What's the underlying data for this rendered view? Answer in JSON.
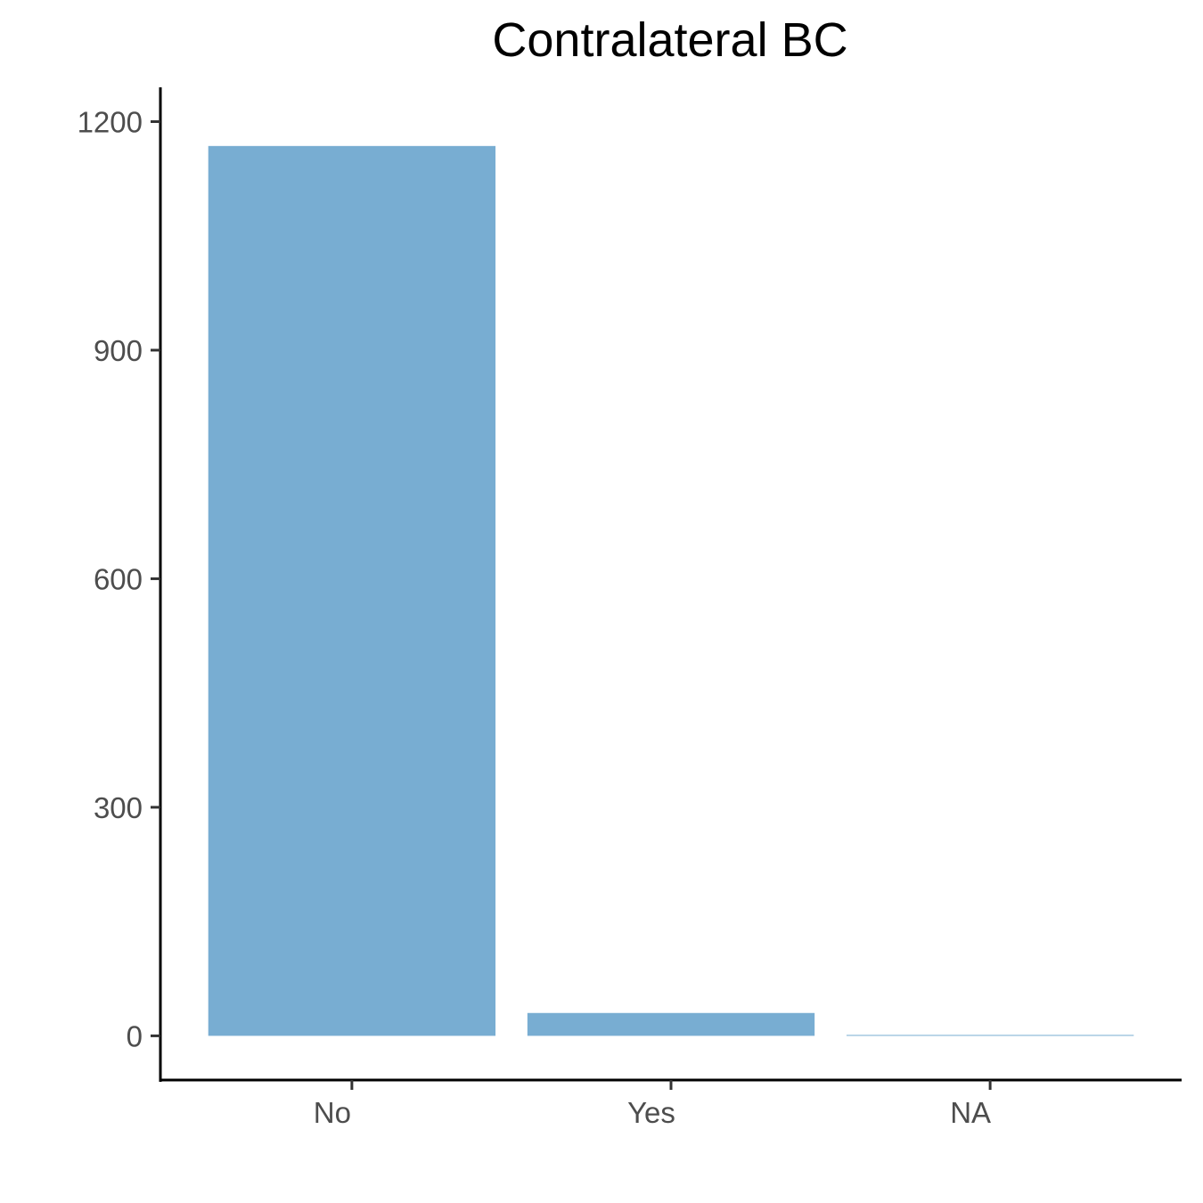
{
  "chart_data": {
    "type": "bar",
    "title": "Contralateral BC",
    "xlabel": "",
    "ylabel": "",
    "categories": [
      "No",
      "Yes",
      "NA"
    ],
    "values": [
      1168,
      30,
      1
    ],
    "ylim": [
      -58,
      1245
    ],
    "yticks": [
      0,
      300,
      600,
      900,
      1200
    ],
    "ytick_labels": [
      "0",
      "300",
      "600",
      "900",
      "1200"
    ],
    "bar_color": "#78ADD2",
    "grid": false,
    "legend": "none"
  }
}
